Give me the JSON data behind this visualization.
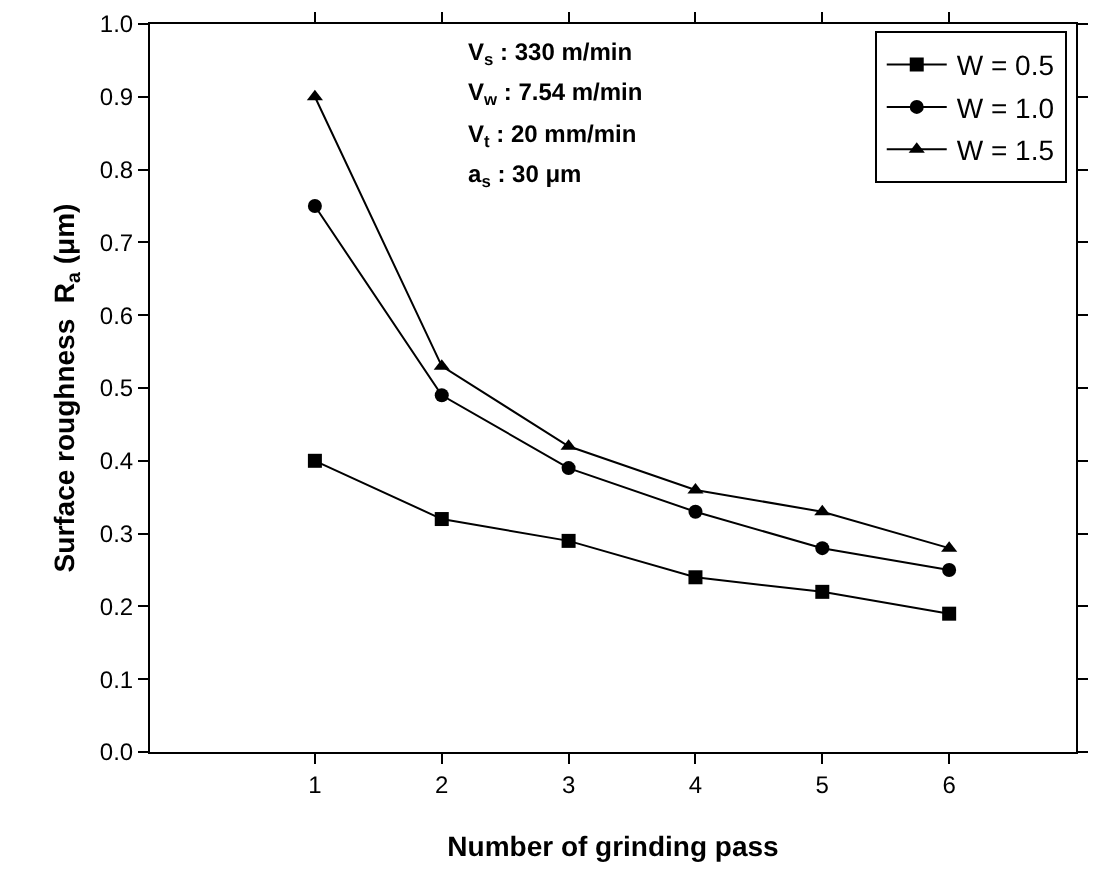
{
  "chart_data": {
    "type": "line",
    "xlabel": "Number of grinding pass",
    "ylabel": "Surface roughness  R$_{a}$ (μm)",
    "x": [
      1,
      2,
      3,
      4,
      5,
      6
    ],
    "series": [
      {
        "name": "W = 0.5",
        "color": "#000000",
        "marker": "square",
        "values": [
          0.4,
          0.32,
          0.29,
          0.24,
          0.22,
          0.19
        ]
      },
      {
        "name": "W = 1.0",
        "color": "#000000",
        "marker": "circle",
        "values": [
          0.75,
          0.49,
          0.39,
          0.33,
          0.28,
          0.25
        ]
      },
      {
        "name": "W = 1.5",
        "color": "#000000",
        "marker": "triangle",
        "values": [
          0.9,
          0.53,
          0.42,
          0.36,
          0.33,
          0.28
        ]
      }
    ],
    "annotations": [
      "V$_{s}$ : 330 m/min",
      "V$_{w}$ : 7.54 m/min",
      "V$_{t}$ : 20 mm/min",
      "a$_{s}$ : 30 μm"
    ],
    "xlim": [
      -0.3,
      7
    ],
    "xticks": [
      1,
      2,
      3,
      4,
      5,
      6
    ],
    "ylim": [
      0,
      1
    ],
    "yticks": [
      {
        "value": 0,
        "label": "0.0"
      },
      {
        "value": 0.1,
        "label": "0.1"
      },
      {
        "value": 0.2,
        "label": "0.2"
      },
      {
        "value": 0.3,
        "label": "0.3"
      },
      {
        "value": 0.4,
        "label": "0.4"
      },
      {
        "value": 0.5,
        "label": "0.5"
      },
      {
        "value": 0.6,
        "label": "0.6"
      },
      {
        "value": 0.7,
        "label": "0.7"
      },
      {
        "value": 0.8,
        "label": "0.8"
      },
      {
        "value": 0.9,
        "label": "0.9"
      },
      {
        "value": 1,
        "label": "1.0"
      }
    ],
    "grid": false,
    "legend": "top right",
    "line_style": "solid"
  }
}
